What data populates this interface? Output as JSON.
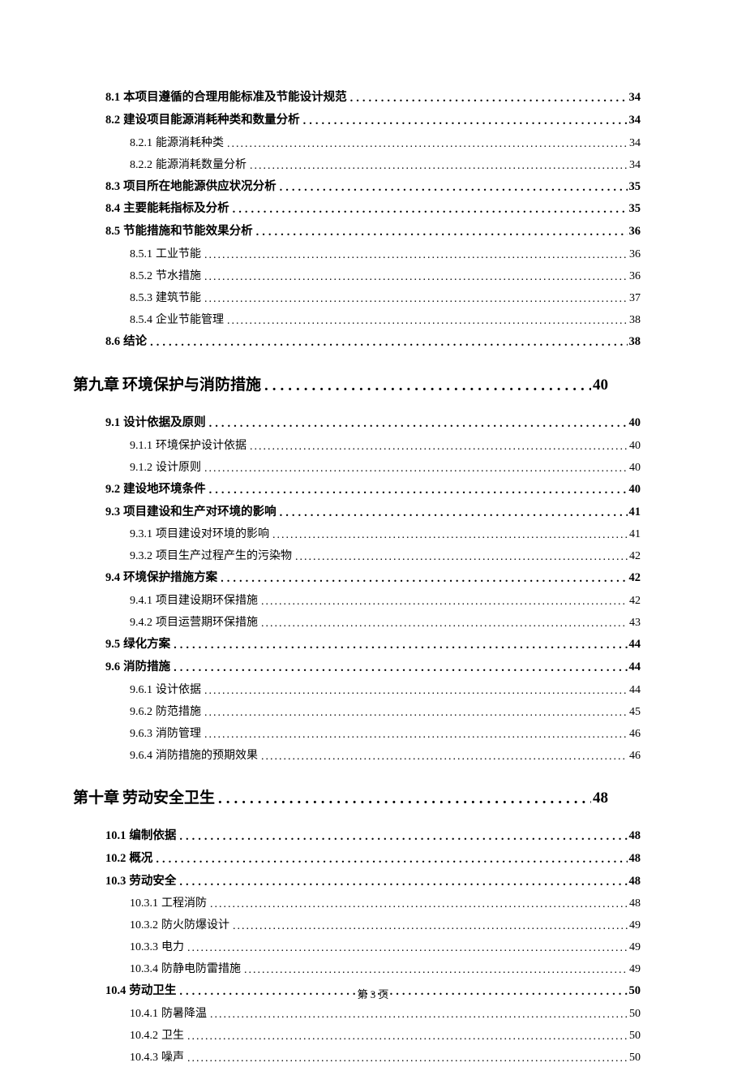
{
  "footer": "第 3 页",
  "leader_char": ".",
  "entries": [
    {
      "level": "section",
      "num": "8.1",
      "title": "本项目遵循的合理用能标准及节能设计规范",
      "page": "34"
    },
    {
      "level": "section",
      "num": "8.2",
      "title": "建设项目能源消耗种类和数量分析",
      "page": "34"
    },
    {
      "level": "subsection",
      "num": "8.2.1",
      "title": "能源消耗种类",
      "page": "34"
    },
    {
      "level": "subsection",
      "num": "8.2.2",
      "title": "能源消耗数量分析",
      "page": "34"
    },
    {
      "level": "section",
      "num": "8.3",
      "title": "项目所在地能源供应状况分析",
      "page": "35"
    },
    {
      "level": "section",
      "num": "8.4",
      "title": "主要能耗指标及分析",
      "page": "35"
    },
    {
      "level": "section",
      "num": "8.5",
      "title": "节能措施和节能效果分析",
      "page": "36"
    },
    {
      "level": "subsection",
      "num": "8.5.1",
      "title": "工业节能",
      "page": "36"
    },
    {
      "level": "subsection",
      "num": "8.5.2",
      "title": "节水措施",
      "page": "36"
    },
    {
      "level": "subsection",
      "num": "8.5.3",
      "title": "建筑节能",
      "page": "37"
    },
    {
      "level": "subsection",
      "num": "8.5.4",
      "title": "企业节能管理",
      "page": "38"
    },
    {
      "level": "section",
      "num": "8.6",
      "title": "结论",
      "page": "38"
    },
    {
      "level": "chapter",
      "num": "第九章",
      "title": "环境保护与消防措施",
      "page": "40"
    },
    {
      "level": "section",
      "num": "9.1",
      "title": "设计依据及原则",
      "page": "40"
    },
    {
      "level": "subsection",
      "num": "9.1.1",
      "title": "环境保护设计依据",
      "page": "40"
    },
    {
      "level": "subsection",
      "num": "9.1.2",
      "title": "设计原则",
      "page": "40"
    },
    {
      "level": "section",
      "num": "9.2",
      "title": "建设地环境条件",
      "page": "40"
    },
    {
      "level": "section",
      "num": "9.3",
      "title": " 项目建设和生产对环境的影响",
      "page": "41"
    },
    {
      "level": "subsection",
      "num": "9.3.1",
      "title": " 项目建设对环境的影响",
      "page": "41"
    },
    {
      "level": "subsection",
      "num": "9.3.2",
      "title": " 项目生产过程产生的污染物",
      "page": "42"
    },
    {
      "level": "section",
      "num": "9.4",
      "title": " 环境保护措施方案",
      "page": "42"
    },
    {
      "level": "subsection",
      "num": "9.4.1",
      "title": " 项目建设期环保措施",
      "page": "42"
    },
    {
      "level": "subsection",
      "num": "9.4.2",
      "title": " 项目运营期环保措施",
      "page": "43"
    },
    {
      "level": "section",
      "num": "9.5",
      "title": "绿化方案",
      "page": "44"
    },
    {
      "level": "section",
      "num": "9.6",
      "title": "消防措施",
      "page": "44"
    },
    {
      "level": "subsection",
      "num": "9.6.1",
      "title": "设计依据",
      "page": "44"
    },
    {
      "level": "subsection",
      "num": "9.6.2",
      "title": "防范措施",
      "page": "45"
    },
    {
      "level": "subsection",
      "num": "9.6.3",
      "title": "消防管理",
      "page": "46"
    },
    {
      "level": "subsection",
      "num": "9.6.4",
      "title": "消防措施的预期效果",
      "page": "46"
    },
    {
      "level": "chapter",
      "num": "第十章",
      "title": "劳动安全卫生",
      "page": "48"
    },
    {
      "level": "section",
      "num": "10.1",
      "title": " 编制依据",
      "page": "48"
    },
    {
      "level": "section",
      "num": "10.2",
      "title": "概况",
      "page": "48"
    },
    {
      "level": "section",
      "num": "10.3",
      "title": " 劳动安全",
      "page": "48"
    },
    {
      "level": "subsection",
      "num": "10.3.1",
      "title": "工程消防",
      "page": "48"
    },
    {
      "level": "subsection",
      "num": "10.3.2",
      "title": "防火防爆设计",
      "page": "49"
    },
    {
      "level": "subsection",
      "num": "10.3.3",
      "title": "电力",
      "page": "49"
    },
    {
      "level": "subsection",
      "num": "10.3.4",
      "title": "防静电防雷措施",
      "page": "49"
    },
    {
      "level": "section",
      "num": "10.4",
      "title": "劳动卫生",
      "page": "50"
    },
    {
      "level": "subsection",
      "num": "10.4.1",
      "title": "防暑降温",
      "page": "50"
    },
    {
      "level": "subsection",
      "num": "10.4.2",
      "title": "卫生",
      "page": "50"
    },
    {
      "level": "subsection",
      "num": "10.4.3",
      "title": "噪声",
      "page": "50"
    }
  ]
}
